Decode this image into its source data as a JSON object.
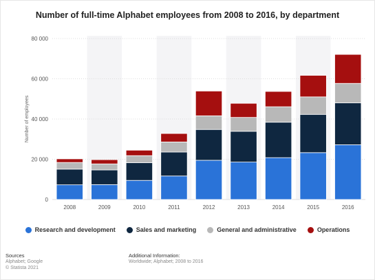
{
  "title": "Number of full-time Alphabet employees from 2008 to 2016, by department",
  "footer": {
    "sources_label": "Sources",
    "sources_line1": "Alphabet; Google",
    "sources_line2": "© Statista 2021",
    "additional_label": "Additional Information:",
    "additional_line1": "Worldwide; Alphabet; 2008 to 2016"
  },
  "colors": {
    "research": "#2a73d8",
    "sales": "#0f2740",
    "general": "#b8b8b8",
    "operations": "#a50f0f",
    "grid": "#dddddd",
    "band": "#f4f4f6"
  },
  "chart_data": {
    "type": "bar",
    "stacked": true,
    "title": "Number of full-time Alphabet employees from 2008 to 2016, by department",
    "xlabel": "",
    "ylabel": "Number of employees",
    "ylim": [
      0,
      80000
    ],
    "yticks": [
      0,
      20000,
      40000,
      60000,
      80000
    ],
    "ytick_labels": [
      "0",
      "20 000",
      "40 000",
      "60 000",
      "80 000"
    ],
    "grid": true,
    "legend_position": "bottom",
    "categories": [
      "2008",
      "2009",
      "2010",
      "2011",
      "2012",
      "2013",
      "2014",
      "2015",
      "2016"
    ],
    "series": [
      {
        "name": "Research and development",
        "color_key": "research",
        "values": [
          7300,
          7400,
          9500,
          11700,
          19500,
          18600,
          20800,
          23300,
          27200
        ]
      },
      {
        "name": "Sales and marketing",
        "color_key": "sales",
        "values": [
          7800,
          7300,
          8800,
          11900,
          15300,
          15300,
          17600,
          19000,
          20800
        ]
      },
      {
        "name": "General and administrative",
        "color_key": "general",
        "values": [
          3300,
          3000,
          3500,
          5000,
          6800,
          6900,
          7700,
          8700,
          9700
        ]
      },
      {
        "name": "Operations",
        "color_key": "operations",
        "values": [
          1800,
          2100,
          2700,
          4200,
          12300,
          7000,
          7600,
          10700,
          14400
        ]
      }
    ]
  }
}
